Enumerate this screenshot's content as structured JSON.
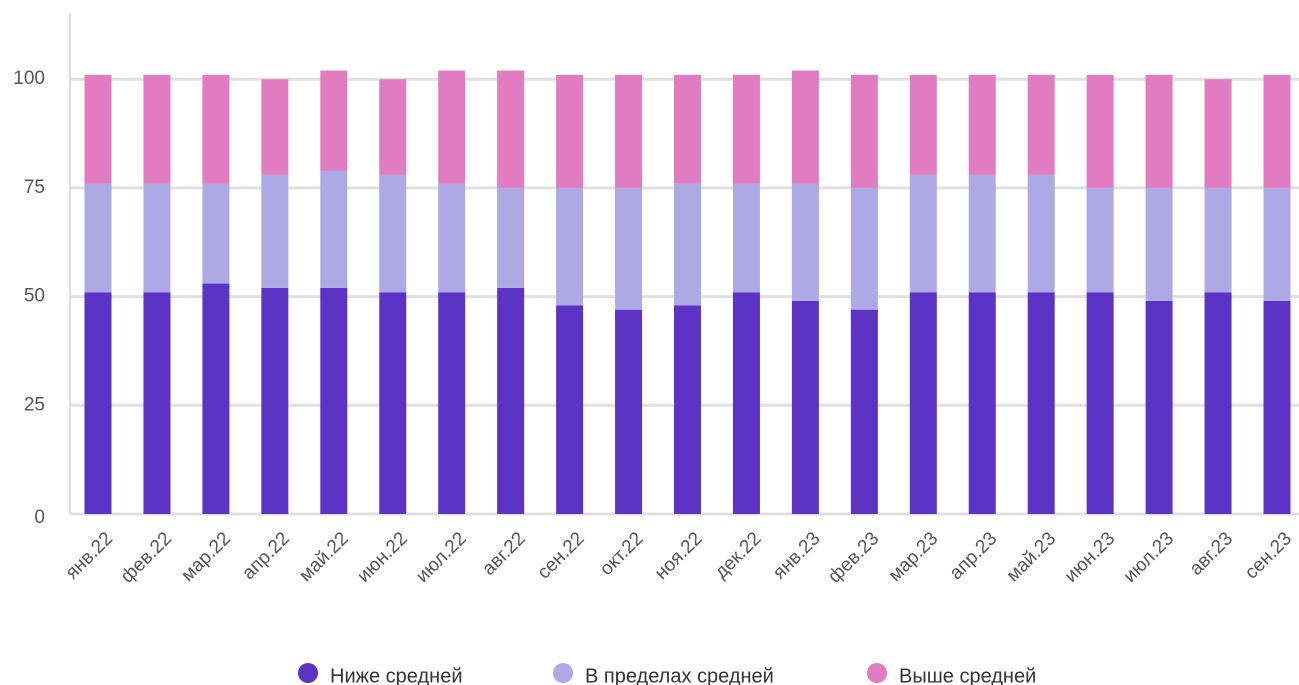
{
  "chart_data": {
    "type": "stacked_bar",
    "categories": [
      "янв.22",
      "фев.22",
      "мар.22",
      "апр.22",
      "май.22",
      "июн.22",
      "июл.22",
      "авг.22",
      "сен.22",
      "окт.22",
      "ноя.22",
      "дек.22",
      "янв.23",
      "фев.23",
      "мар.23",
      "апр.23",
      "май.23",
      "июн.23",
      "июл.23",
      "авг.23",
      "сен.23"
    ],
    "series": [
      {
        "name": "Ниже средней",
        "color": "#5c33c4",
        "values": [
          51,
          51,
          53,
          52,
          52,
          51,
          51,
          52,
          48,
          47,
          48,
          51,
          49,
          47,
          51,
          51,
          51,
          51,
          49,
          51,
          49
        ]
      },
      {
        "name": "В пределах средней",
        "color": "#aea8e4",
        "values": [
          25,
          25,
          23,
          26,
          27,
          27,
          25,
          23,
          27,
          28,
          28,
          25,
          27,
          28,
          27,
          27,
          27,
          24,
          26,
          24,
          26
        ]
      },
      {
        "name": "Выше средней",
        "color": "#e07cbf",
        "values": [
          25,
          25,
          25,
          22,
          23,
          22,
          26,
          27,
          26,
          26,
          25,
          25,
          26,
          26,
          23,
          23,
          23,
          26,
          26,
          25,
          26
        ]
      }
    ],
    "ylim": [
      0,
      115
    ],
    "yticks": [
      0,
      25,
      50,
      75,
      100
    ],
    "grid": true
  }
}
